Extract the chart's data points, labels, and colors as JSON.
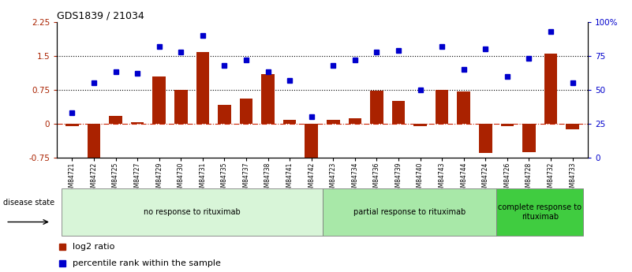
{
  "title": "GDS1839 / 21034",
  "samples": [
    "GSM84721",
    "GSM84722",
    "GSM84725",
    "GSM84727",
    "GSM84729",
    "GSM84730",
    "GSM84731",
    "GSM84735",
    "GSM84737",
    "GSM84738",
    "GSM84741",
    "GSM84742",
    "GSM84723",
    "GSM84734",
    "GSM84736",
    "GSM84739",
    "GSM84740",
    "GSM84743",
    "GSM84744",
    "GSM84724",
    "GSM84726",
    "GSM84728",
    "GSM84732",
    "GSM84733"
  ],
  "log2_ratio": [
    -0.05,
    -0.82,
    0.18,
    0.03,
    1.05,
    0.75,
    1.58,
    0.42,
    0.55,
    1.1,
    0.08,
    -0.88,
    0.08,
    0.12,
    0.73,
    0.5,
    -0.05,
    0.75,
    0.72,
    -0.65,
    -0.05,
    -0.62,
    1.55,
    -0.12
  ],
  "percentile_pct": [
    33,
    55,
    63,
    62,
    82,
    78,
    90,
    68,
    72,
    63,
    57,
    30,
    68,
    72,
    78,
    79,
    50,
    82,
    65,
    80,
    60,
    73,
    93,
    55
  ],
  "group_labels": [
    "no response to rituximab",
    "partial response to rituximab",
    "complete response to\nrituximab"
  ],
  "group_spans": [
    12,
    8,
    4
  ],
  "group_colors": [
    "#d8f5d8",
    "#a8e8a8",
    "#40cc40"
  ],
  "ylim_left": [
    -0.75,
    2.25
  ],
  "ylim_right": [
    0,
    100
  ],
  "yticks_left": [
    -0.75,
    0,
    0.75,
    1.5,
    2.25
  ],
  "ytick_left_labels": [
    "-0.75",
    "0",
    "0.75",
    "1.5",
    "2.25"
  ],
  "yticks_right": [
    0,
    25,
    50,
    75,
    100
  ],
  "ytick_right_labels": [
    "0",
    "25",
    "50",
    "75",
    "100%"
  ],
  "hlines": [
    0.75,
    1.5
  ],
  "bar_color": "#aa2200",
  "marker_color": "#0000cc",
  "zero_line_color": "#cc2200",
  "background": "#ffffff",
  "title_fontsize": 9
}
